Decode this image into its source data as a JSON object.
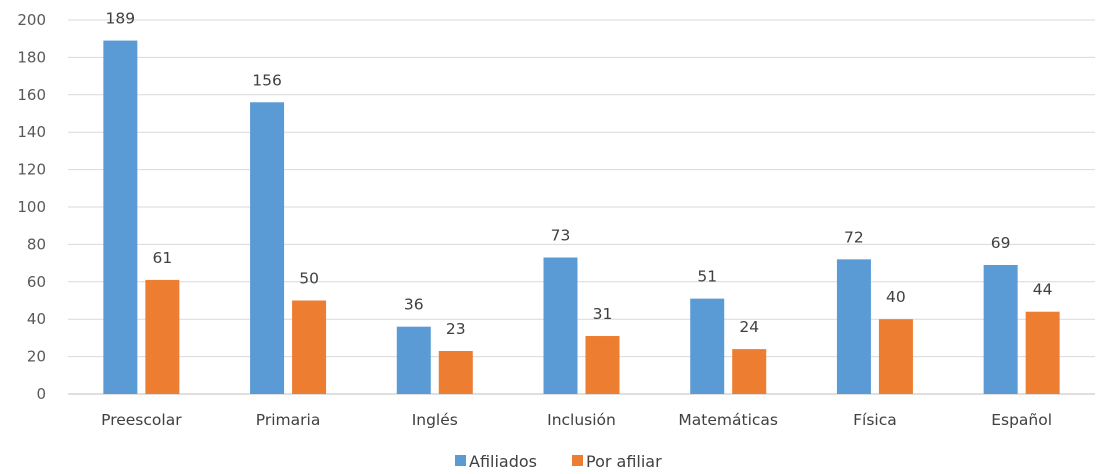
{
  "chart_data": {
    "type": "bar",
    "categories": [
      "Preescolar",
      "Primaria",
      "Inglés",
      "Inclusión",
      "Matemáticas",
      "Física",
      "Español"
    ],
    "series": [
      {
        "name": "Afiliados",
        "values": [
          189,
          156,
          36,
          73,
          51,
          72,
          69
        ],
        "color": "#5b9bd5"
      },
      {
        "name": "Por afiliar",
        "values": [
          61,
          50,
          23,
          31,
          24,
          40,
          44
        ],
        "color": "#ed7d31"
      }
    ],
    "title": "",
    "xlabel": "",
    "ylabel": "",
    "ylim": [
      0,
      200
    ],
    "yticks": [
      0,
      20,
      40,
      60,
      80,
      100,
      120,
      140,
      160,
      180,
      200
    ],
    "grid": true,
    "legend_position": "bottom",
    "data_labels": true
  }
}
